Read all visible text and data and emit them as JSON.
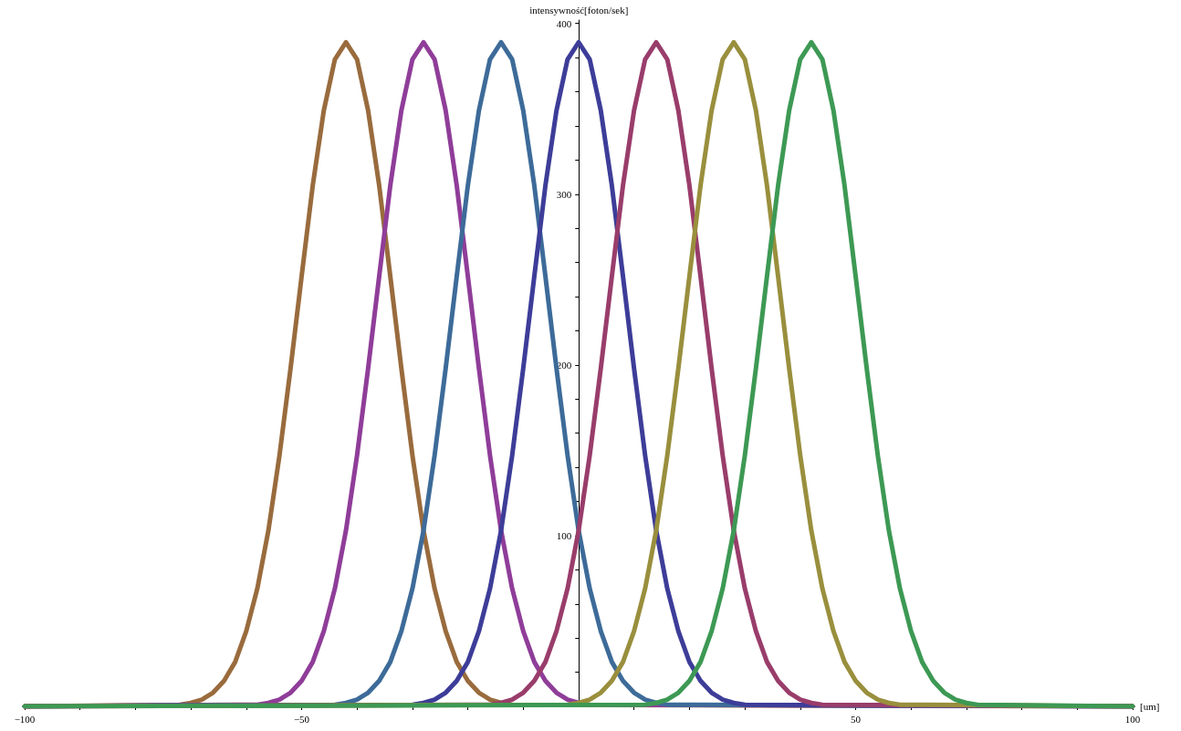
{
  "chart_data": {
    "type": "line",
    "ylabel": "intensywność[foton/sek]",
    "xlabel": "[um]",
    "xlim": [
      -100,
      100
    ],
    "ylim": [
      0,
      402
    ],
    "xticks": [
      {
        "value": -100,
        "label": "−100"
      },
      {
        "value": -90,
        "label": null
      },
      {
        "value": -80,
        "label": null
      },
      {
        "value": -70,
        "label": null
      },
      {
        "value": -60,
        "label": null
      },
      {
        "value": -50,
        "label": "−50"
      },
      {
        "value": -40,
        "label": null
      },
      {
        "value": -30,
        "label": null
      },
      {
        "value": -20,
        "label": null
      },
      {
        "value": -10,
        "label": null
      },
      {
        "value": 10,
        "label": null
      },
      {
        "value": 20,
        "label": null
      },
      {
        "value": 30,
        "label": null
      },
      {
        "value": 40,
        "label": null
      },
      50,
      {
        "value": 60,
        "label": null
      },
      {
        "value": 70,
        "label": null
      },
      {
        "value": 80,
        "label": null
      },
      {
        "value": 90,
        "label": null
      },
      100
    ],
    "yticks": [
      {
        "value": 20,
        "label": null
      },
      {
        "value": 40,
        "label": null
      },
      {
        "value": 60,
        "label": null
      },
      {
        "value": 80,
        "label": null
      },
      100,
      {
        "value": 120,
        "label": null
      },
      {
        "value": 140,
        "label": null
      },
      {
        "value": 160,
        "label": null
      },
      {
        "value": 180,
        "label": null
      },
      200,
      {
        "value": 220,
        "label": null
      },
      {
        "value": 240,
        "label": null
      },
      {
        "value": 260,
        "label": null
      },
      {
        "value": 280,
        "label": null
      },
      300,
      {
        "value": 320,
        "label": null
      },
      {
        "value": 340,
        "label": null
      },
      {
        "value": 360,
        "label": null
      },
      {
        "value": 380,
        "label": null
      },
      400
    ],
    "grid": false,
    "marker": "none",
    "line_style": "solid",
    "series": [
      {
        "color": "#996b3d",
        "x": [
          -100,
          -72,
          -70,
          -68,
          -66,
          -64,
          -62,
          -60,
          -58,
          -56,
          -54,
          -52,
          -50,
          -48,
          -46,
          -44,
          -42,
          -40,
          -38,
          -36,
          -34,
          -32,
          -30,
          -28,
          -26,
          -24,
          -22,
          -20,
          -18,
          -16,
          -14,
          -12,
          100
        ],
        "values": [
          0,
          1,
          2,
          4,
          8,
          15,
          26,
          44,
          69,
          103,
          147,
          198,
          252,
          305,
          349,
          379,
          389,
          379,
          349,
          305,
          252,
          198,
          147,
          103,
          69,
          44,
          26,
          15,
          8,
          4,
          2,
          1,
          0
        ]
      },
      {
        "color": "#8f3d99",
        "x": [
          -100,
          -58,
          -56,
          -54,
          -52,
          -50,
          -48,
          -46,
          -44,
          -42,
          -40,
          -38,
          -36,
          -34,
          -32,
          -30,
          -28,
          -26,
          -24,
          -22,
          -20,
          -18,
          -16,
          -14,
          -12,
          -10,
          -8,
          -6,
          -4,
          -2,
          0,
          2,
          100
        ],
        "values": [
          0,
          1,
          2,
          4,
          8,
          15,
          26,
          44,
          69,
          103,
          147,
          198,
          252,
          305,
          349,
          379,
          389,
          379,
          349,
          305,
          252,
          198,
          147,
          103,
          69,
          44,
          26,
          15,
          8,
          4,
          2,
          1,
          0
        ]
      },
      {
        "color": "#3d6b99",
        "x": [
          -100,
          -44,
          -42,
          -40,
          -38,
          -36,
          -34,
          -32,
          -30,
          -28,
          -26,
          -24,
          -22,
          -20,
          -18,
          -16,
          -14,
          -12,
          -10,
          -8,
          -6,
          -4,
          -2,
          0,
          2,
          4,
          6,
          8,
          10,
          12,
          14,
          16,
          100
        ],
        "values": [
          0,
          1,
          2,
          4,
          8,
          15,
          26,
          44,
          69,
          103,
          147,
          198,
          252,
          305,
          349,
          379,
          389,
          379,
          349,
          305,
          252,
          198,
          147,
          103,
          69,
          44,
          26,
          15,
          8,
          4,
          2,
          1,
          0
        ]
      },
      {
        "color": "#3d3d99",
        "x": [
          -100,
          -30,
          -28,
          -26,
          -24,
          -22,
          -20,
          -18,
          -16,
          -14,
          -12,
          -10,
          -8,
          -6,
          -4,
          -2,
          0,
          2,
          4,
          6,
          8,
          10,
          12,
          14,
          16,
          18,
          20,
          22,
          24,
          26,
          28,
          30,
          100
        ],
        "values": [
          0,
          1,
          2,
          4,
          8,
          15,
          26,
          44,
          69,
          103,
          147,
          198,
          252,
          305,
          349,
          379,
          389,
          379,
          349,
          305,
          252,
          198,
          147,
          103,
          69,
          44,
          26,
          15,
          8,
          4,
          2,
          1,
          0
        ]
      },
      {
        "color": "#993d6b",
        "x": [
          -100,
          -16,
          -14,
          -12,
          -10,
          -8,
          -6,
          -4,
          -2,
          0,
          2,
          4,
          6,
          8,
          10,
          12,
          14,
          16,
          18,
          20,
          22,
          24,
          26,
          28,
          30,
          32,
          34,
          36,
          38,
          40,
          42,
          44,
          100
        ],
        "values": [
          0,
          1,
          2,
          4,
          8,
          15,
          26,
          44,
          69,
          103,
          147,
          198,
          252,
          305,
          349,
          379,
          389,
          379,
          349,
          305,
          252,
          198,
          147,
          103,
          69,
          44,
          26,
          15,
          8,
          4,
          2,
          1,
          0
        ]
      },
      {
        "color": "#998f3d",
        "x": [
          -100,
          -2,
          0,
          2,
          4,
          6,
          8,
          10,
          12,
          14,
          16,
          18,
          20,
          22,
          24,
          26,
          28,
          30,
          32,
          34,
          36,
          38,
          40,
          42,
          44,
          46,
          48,
          50,
          52,
          54,
          56,
          58,
          100
        ],
        "values": [
          0,
          1,
          2,
          4,
          8,
          15,
          26,
          44,
          69,
          103,
          147,
          198,
          252,
          305,
          349,
          379,
          389,
          379,
          349,
          305,
          252,
          198,
          147,
          103,
          69,
          44,
          26,
          15,
          8,
          4,
          2,
          1,
          0
        ]
      },
      {
        "color": "#3d9954",
        "x": [
          -100,
          12,
          14,
          16,
          18,
          20,
          22,
          24,
          26,
          28,
          30,
          32,
          34,
          36,
          38,
          40,
          42,
          44,
          46,
          48,
          50,
          52,
          54,
          56,
          58,
          60,
          62,
          64,
          66,
          68,
          70,
          72,
          100
        ],
        "values": [
          0,
          1,
          2,
          4,
          8,
          15,
          26,
          44,
          69,
          103,
          147,
          198,
          252,
          305,
          349,
          379,
          389,
          379,
          349,
          305,
          252,
          198,
          147,
          103,
          69,
          44,
          26,
          15,
          8,
          4,
          2,
          1,
          0
        ]
      }
    ]
  }
}
